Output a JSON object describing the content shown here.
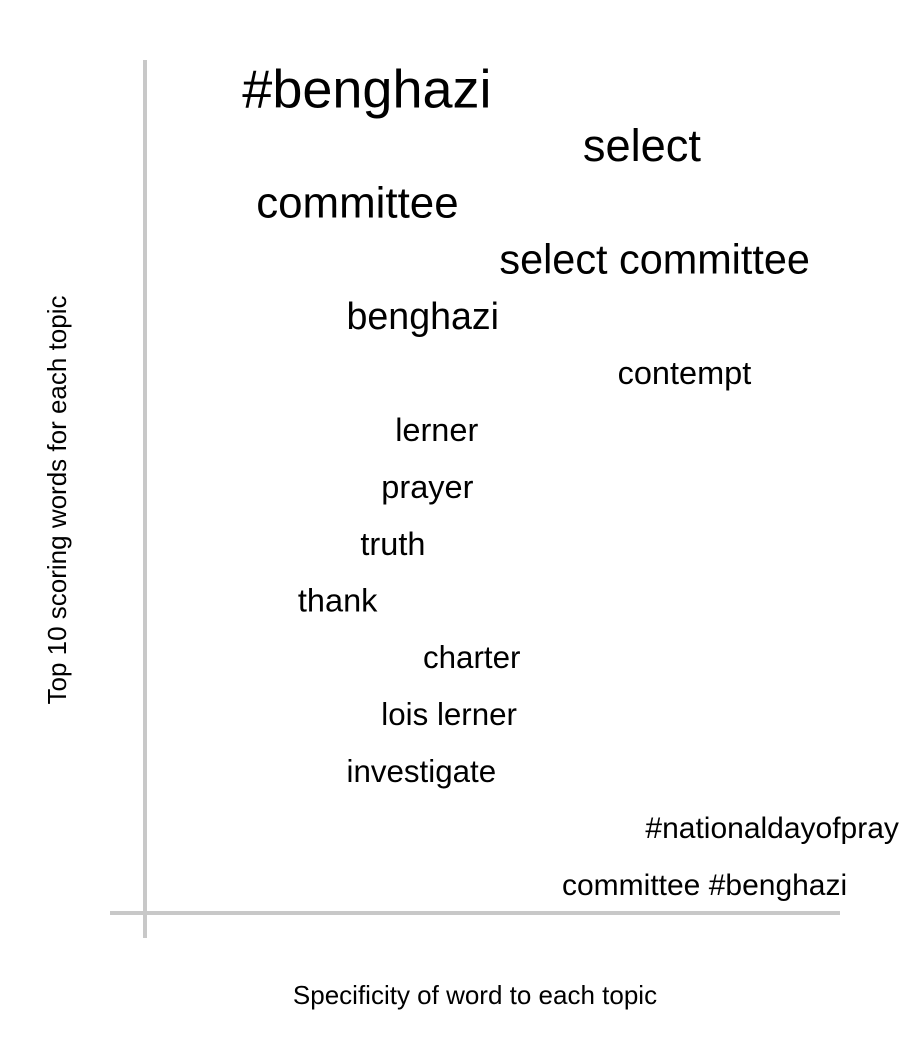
{
  "chart_data": {
    "type": "scatter",
    "xlabel": "Specificity of word to each topic",
    "ylabel": "Top 10 scoring words for each topic",
    "xlim": [
      0,
      1
    ],
    "ylim": [
      0.5,
      15.5
    ],
    "grid": false,
    "axis_color": "#c8c8c8",
    "text_color": "#000000",
    "words": [
      {
        "label": "#benghazi",
        "x": 0.14,
        "rank": 1,
        "weight": 1.0
      },
      {
        "label": "select",
        "x": 0.63,
        "rank": 2,
        "weight": 0.86
      },
      {
        "label": "committee",
        "x": 0.16,
        "rank": 3,
        "weight": 0.84
      },
      {
        "label": "select committee",
        "x": 0.51,
        "rank": 4,
        "weight": 0.8
      },
      {
        "label": "benghazi",
        "x": 0.29,
        "rank": 5,
        "weight": 0.74
      },
      {
        "label": "contempt",
        "x": 0.68,
        "rank": 6,
        "weight": 0.66
      },
      {
        "label": "lerner",
        "x": 0.36,
        "rank": 7,
        "weight": 0.66
      },
      {
        "label": "prayer",
        "x": 0.34,
        "rank": 8,
        "weight": 0.66
      },
      {
        "label": "truth",
        "x": 0.31,
        "rank": 9,
        "weight": 0.66
      },
      {
        "label": "thank",
        "x": 0.22,
        "rank": 10,
        "weight": 0.66
      },
      {
        "label": "charter",
        "x": 0.4,
        "rank": 11,
        "weight": 0.64
      },
      {
        "label": "lois lerner",
        "x": 0.34,
        "rank": 12,
        "weight": 0.64
      },
      {
        "label": "investigate",
        "x": 0.29,
        "rank": 13,
        "weight": 0.64
      },
      {
        "label": "#nationaldayofprayer",
        "x": 0.72,
        "rank": 14,
        "weight": 0.62
      },
      {
        "label": "committee #benghazi",
        "x": 0.6,
        "rank": 15,
        "weight": 0.62
      }
    ]
  }
}
